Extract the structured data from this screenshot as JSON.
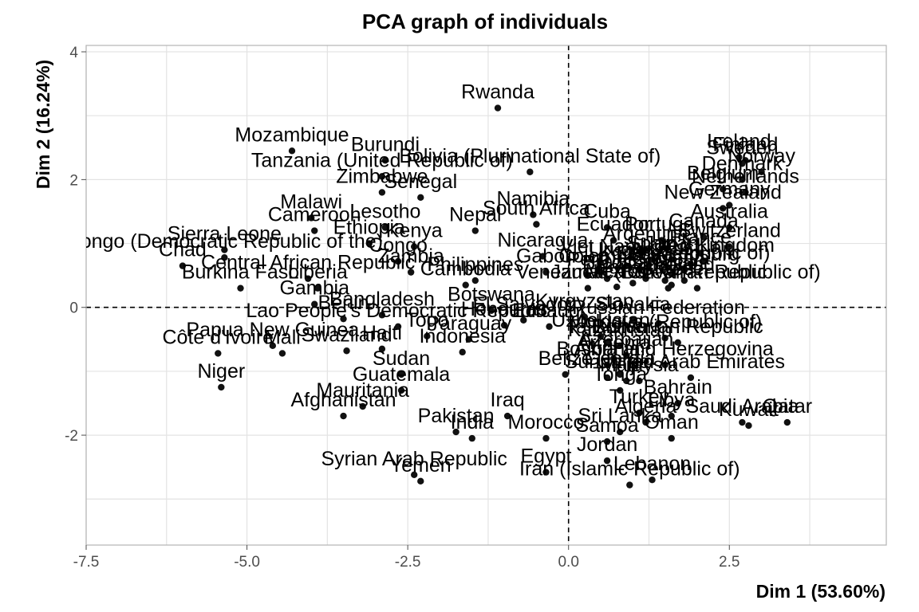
{
  "chart_data": {
    "type": "scatter",
    "title": "PCA graph of individuals",
    "xlabel": "Dim 1 (53.60%)",
    "ylabel": "Dim 2 (16.24%)",
    "xlim": [
      -7.5,
      4.94
    ],
    "ylim": [
      -3.72,
      4.1
    ],
    "xticks": [
      -7.5,
      -5.0,
      -2.5,
      0.0,
      2.5
    ],
    "xtick_labels": [
      "-7.5",
      "-5.0",
      "-2.5",
      "0.0",
      "2.5"
    ],
    "yticks": [
      -2,
      0,
      2,
      4
    ],
    "ytick_labels": [
      "-2",
      "0",
      "2",
      "4"
    ],
    "grid": true,
    "reference_lines": {
      "x": 0,
      "y": 0,
      "style": "dashed"
    },
    "colors": {
      "points": "#111111",
      "grid": "#e3e3e3",
      "frame": "#b3b3b3"
    },
    "points": [
      {
        "label": "Rwanda",
        "x": -1.1,
        "y": 3.12
      },
      {
        "label": "Mozambique",
        "x": -4.3,
        "y": 2.45
      },
      {
        "label": "Bolivia (Plurinational State of)",
        "x": -0.6,
        "y": 2.12
      },
      {
        "label": "Burundi",
        "x": -2.85,
        "y": 2.3
      },
      {
        "label": "Tanzania (United Republic of)",
        "x": -2.9,
        "y": 2.05
      },
      {
        "label": "Zimbabwe",
        "x": -2.9,
        "y": 1.8
      },
      {
        "label": "Namibia",
        "x": -0.55,
        "y": 1.45
      },
      {
        "label": "South Africa",
        "x": -0.5,
        "y": 1.3
      },
      {
        "label": "Malawi",
        "x": -4.0,
        "y": 1.4
      },
      {
        "label": "Senegal",
        "x": -2.3,
        "y": 1.72
      },
      {
        "label": "Nepal",
        "x": -1.45,
        "y": 1.2
      },
      {
        "label": "Cameroon",
        "x": -3.95,
        "y": 1.2
      },
      {
        "label": "Lesotho",
        "x": -2.85,
        "y": 1.25
      },
      {
        "label": "Sierra Leone",
        "x": -5.35,
        "y": 0.9
      },
      {
        "label": "Ethiopia",
        "x": -3.1,
        "y": 1.0
      },
      {
        "label": "Kenya",
        "x": -2.4,
        "y": 0.95
      },
      {
        "label": "Nicaragua",
        "x": -0.4,
        "y": 0.8
      },
      {
        "label": "Gabon",
        "x": -0.35,
        "y": 0.55
      },
      {
        "label": "Congo (Democratic Republic of the)",
        "x": -5.35,
        "y": 0.78
      },
      {
        "label": "Chad",
        "x": -6.0,
        "y": 0.65
      },
      {
        "label": "Congo",
        "x": -2.65,
        "y": 0.72
      },
      {
        "label": "Cambodia",
        "x": -1.6,
        "y": 0.35
      },
      {
        "label": "Zambia",
        "x": -2.45,
        "y": 0.55
      },
      {
        "label": "Central African Republic",
        "x": -4.05,
        "y": 0.45
      },
      {
        "label": "Liberia",
        "x": -3.9,
        "y": 0.3
      },
      {
        "label": "Burkina Faso",
        "x": -5.1,
        "y": 0.3
      },
      {
        "label": "Philippines",
        "x": -1.45,
        "y": 0.42
      },
      {
        "label": "Gambia",
        "x": -3.95,
        "y": 0.05
      },
      {
        "label": "Benin",
        "x": -3.5,
        "y": -0.18
      },
      {
        "label": "Bangladesh",
        "x": -2.9,
        "y": -0.12
      },
      {
        "label": "Botswana",
        "x": -1.2,
        "y": -0.05
      },
      {
        "label": "Honduras",
        "x": -1.0,
        "y": -0.28
      },
      {
        "label": "El Salvador",
        "x": -0.7,
        "y": -0.2
      },
      {
        "label": "Ecuador",
        "x": -0.3,
        "y": -0.3
      },
      {
        "label": "Papua New Guinea",
        "x": -4.6,
        "y": -0.6
      },
      {
        "label": "Lao People's Democratic Republic",
        "x": -2.65,
        "y": -0.3
      },
      {
        "label": "Togo",
        "x": -2.2,
        "y": -0.45
      },
      {
        "label": "Paraguay",
        "x": -1.55,
        "y": -0.5
      },
      {
        "label": "Indonesia",
        "x": -1.65,
        "y": -0.7
      },
      {
        "label": "Côte d'Ivoire",
        "x": -5.45,
        "y": -0.72
      },
      {
        "label": "Mali",
        "x": -4.45,
        "y": -0.72
      },
      {
        "label": "Swaziland",
        "x": -3.45,
        "y": -0.68
      },
      {
        "label": "Haiti",
        "x": -2.9,
        "y": -0.65
      },
      {
        "label": "Belize",
        "x": -0.05,
        "y": -1.05
      },
      {
        "label": "Sudan",
        "x": -2.6,
        "y": -1.05
      },
      {
        "label": "Guatemala",
        "x": -2.6,
        "y": -1.3
      },
      {
        "label": "Niger",
        "x": -5.4,
        "y": -1.25
      },
      {
        "label": "Mauritania",
        "x": -3.2,
        "y": -1.55
      },
      {
        "label": "Afghanistan",
        "x": -3.5,
        "y": -1.7
      },
      {
        "label": "Iraq",
        "x": -0.95,
        "y": -1.7
      },
      {
        "label": "Pakistan",
        "x": -1.75,
        "y": -1.95
      },
      {
        "label": "India",
        "x": -1.5,
        "y": -2.05
      },
      {
        "label": "Morocco",
        "x": -0.35,
        "y": -2.05
      },
      {
        "label": "Syrian Arab Republic",
        "x": -2.4,
        "y": -2.62
      },
      {
        "label": "Yemen",
        "x": -2.3,
        "y": -2.72
      },
      {
        "label": "Egypt",
        "x": -0.35,
        "y": -2.58
      },
      {
        "label": "Iceland",
        "x": 2.65,
        "y": 2.35
      },
      {
        "label": "Finland",
        "x": 2.75,
        "y": 2.3
      },
      {
        "label": "Sweden",
        "x": 2.7,
        "y": 2.25
      },
      {
        "label": "Norway",
        "x": 3.0,
        "y": 2.12
      },
      {
        "label": "Denmark",
        "x": 2.7,
        "y": 2.0
      },
      {
        "label": "Belgium",
        "x": 2.4,
        "y": 1.85
      },
      {
        "label": "Netherlands",
        "x": 2.75,
        "y": 1.8
      },
      {
        "label": "Germany",
        "x": 2.5,
        "y": 1.6
      },
      {
        "label": "New Zealand",
        "x": 2.4,
        "y": 1.55
      },
      {
        "label": "Cuba",
        "x": 0.6,
        "y": 1.25
      },
      {
        "label": "Ecuador",
        "x": 0.7,
        "y": 1.05
      },
      {
        "label": "Portugal",
        "x": 1.45,
        "y": 1.05
      },
      {
        "label": "Canada",
        "x": 2.1,
        "y": 1.1
      },
      {
        "label": "Australia",
        "x": 2.5,
        "y": 1.25
      },
      {
        "label": "France",
        "x": 2.05,
        "y": 0.85
      },
      {
        "label": "Switzerland",
        "x": 2.5,
        "y": 0.95
      },
      {
        "label": "Argentina",
        "x": 1.2,
        "y": 0.9
      },
      {
        "label": "Viet Nam",
        "x": 0.5,
        "y": 0.7
      },
      {
        "label": "Spain",
        "x": 1.3,
        "y": 0.75
      },
      {
        "label": "Chile",
        "x": 1.1,
        "y": 0.6
      },
      {
        "label": "United Kingdom",
        "x": 2.1,
        "y": 0.72
      },
      {
        "label": "Luxembourg",
        "x": 1.8,
        "y": 0.58
      },
      {
        "label": "Austria",
        "x": 1.9,
        "y": 0.68
      },
      {
        "label": "Uruguay",
        "x": 0.9,
        "y": 0.65
      },
      {
        "label": "Peru",
        "x": 0.3,
        "y": 0.5
      },
      {
        "label": "Brazil",
        "x": 0.6,
        "y": 0.45
      },
      {
        "label": "Colombia",
        "x": 0.5,
        "y": 0.55
      },
      {
        "label": "Slovenia",
        "x": 1.6,
        "y": 0.52
      },
      {
        "label": "Ireland",
        "x": 1.8,
        "y": 0.42
      },
      {
        "label": "Italy",
        "x": 1.5,
        "y": 0.42
      },
      {
        "label": "Korea (Republic of)",
        "x": 1.8,
        "y": 0.6
      },
      {
        "label": "Japan",
        "x": 1.6,
        "y": 0.75
      },
      {
        "label": "Jamaica",
        "x": 0.3,
        "y": 0.3
      },
      {
        "label": "Mexico",
        "x": 0.75,
        "y": 0.32
      },
      {
        "label": "Venezuela (Bolivarian Republic of)",
        "x": 1.55,
        "y": 0.3
      },
      {
        "label": "Panama",
        "x": 1.0,
        "y": 0.38
      },
      {
        "label": "Greece",
        "x": 1.6,
        "y": 0.35
      },
      {
        "label": "Czech Republic",
        "x": 2.0,
        "y": 0.3
      },
      {
        "label": "Costa Rica",
        "x": 1.2,
        "y": 0.45
      },
      {
        "label": "Kyrgyzstan",
        "x": 0.25,
        "y": -0.15
      },
      {
        "label": "Slovakia",
        "x": 1.0,
        "y": -0.2
      },
      {
        "label": "Russian Federation",
        "x": 1.4,
        "y": -0.25
      },
      {
        "label": "Moldova (Republic of)",
        "x": 1.5,
        "y": -0.48
      },
      {
        "label": "Bolivarian Republic",
        "x": 1.7,
        "y": -0.55
      },
      {
        "label": "Uzbekistan",
        "x": 0.5,
        "y": -0.45
      },
      {
        "label": "Tajikistan",
        "x": 0.6,
        "y": -0.55
      },
      {
        "label": "Kazakhstan",
        "x": 0.8,
        "y": -0.6
      },
      {
        "label": "Azerbaijan",
        "x": 0.9,
        "y": -0.75
      },
      {
        "label": "Armenia",
        "x": 0.7,
        "y": -0.8
      },
      {
        "label": "Bosnia and Herzegovina",
        "x": 1.5,
        "y": -0.9
      },
      {
        "label": "Albania",
        "x": 0.6,
        "y": -0.9
      },
      {
        "label": "Georgia",
        "x": 0.8,
        "y": -1.05
      },
      {
        "label": "United Arab Emirates",
        "x": 1.9,
        "y": -1.1
      },
      {
        "label": "Suriname",
        "x": 0.6,
        "y": -1.1
      },
      {
        "label": "Fiji",
        "x": 0.9,
        "y": -1.15
      },
      {
        "label": "Malaysia",
        "x": 1.1,
        "y": -1.15
      },
      {
        "label": "Tonga",
        "x": 0.8,
        "y": -1.3
      },
      {
        "label": "Bahrain",
        "x": 1.7,
        "y": -1.5
      },
      {
        "label": "Turkey",
        "x": 1.1,
        "y": -1.65
      },
      {
        "label": "Libya",
        "x": 1.6,
        "y": -1.7
      },
      {
        "label": "Algeria",
        "x": 1.2,
        "y": -1.8
      },
      {
        "label": "Saudi Arabia",
        "x": 2.7,
        "y": -1.8
      },
      {
        "label": "Kuwait",
        "x": 2.8,
        "y": -1.85
      },
      {
        "label": "Qatar",
        "x": 3.4,
        "y": -1.8
      },
      {
        "label": "Sri Lanka",
        "x": 0.8,
        "y": -1.95
      },
      {
        "label": "Oman",
        "x": 1.6,
        "y": -2.05
      },
      {
        "label": "Samoa",
        "x": 0.6,
        "y": -2.1
      },
      {
        "label": "Jordan",
        "x": 0.6,
        "y": -2.4
      },
      {
        "label": "Lebanon",
        "x": 1.3,
        "y": -2.7
      },
      {
        "label": "Iran (Islamic Republic of)",
        "x": 0.95,
        "y": -2.78
      }
    ]
  }
}
